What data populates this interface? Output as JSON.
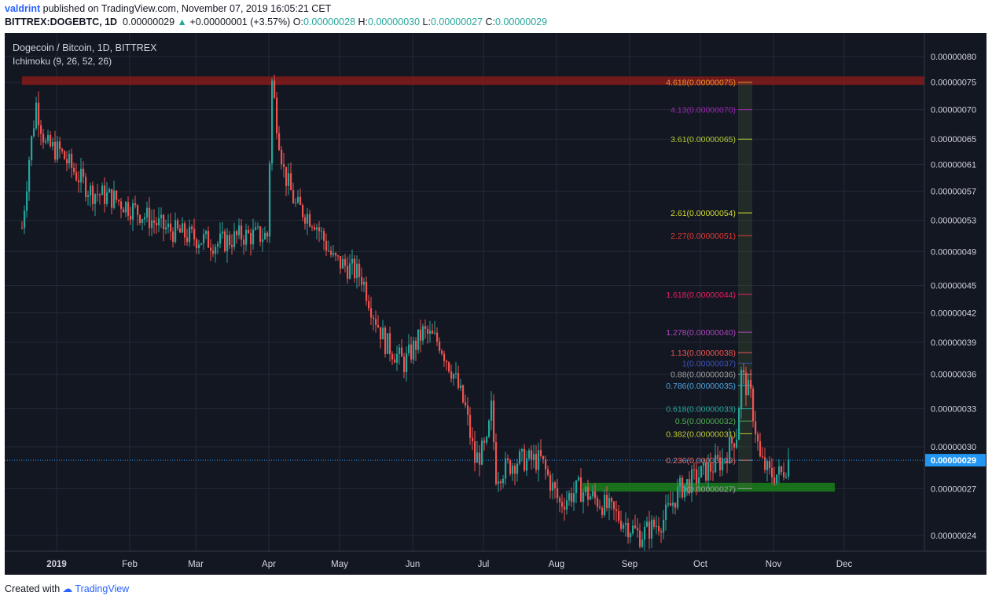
{
  "header": {
    "author": "valdrint",
    "published_text": "published on TradingView.com, November 07, 2019 16:05:21 CET",
    "symbol": "BITTREX:DOGEBTC, 1D",
    "last": "0.00000029",
    "arrow": "▲",
    "change": "+0.00000001 (+3.57%)",
    "o_label": "O:",
    "o_value": "0.00000028",
    "h_label": "H:",
    "h_value": "0.00000030",
    "l_label": "L:",
    "l_value": "0.00000027",
    "c_label": "C:",
    "c_value": "0.00000029"
  },
  "chart_data": {
    "type": "candlestick",
    "title": "Dogecoin / Bitcoin, 1D, BITTREX",
    "indicator": "Ichimoku (9, 26, 52, 26)",
    "price_axis_labels": [
      "0.00000080",
      "0.00000075",
      "0.00000070",
      "0.00000065",
      "0.00000061",
      "0.00000057",
      "0.00000053",
      "0.00000049",
      "0.00000045",
      "0.00000042",
      "0.00000039",
      "0.00000036",
      "0.00000033",
      "0.00000030",
      "0.00000027",
      "0.00000024"
    ],
    "time_axis_labels": [
      "2019",
      "Feb",
      "Mar",
      "Apr",
      "May",
      "Jun",
      "Jul",
      "Aug",
      "Sep",
      "Oct",
      "Nov",
      "Dec"
    ],
    "current_price_label": "0.00000029",
    "price_path": [
      [
        "2018-12-17",
        5.2e-07
      ],
      [
        "2018-12-20",
        6.2e-07
      ],
      [
        "2018-12-23",
        7.1e-07
      ],
      [
        "2018-12-27",
        6.4e-07
      ],
      [
        "2019-01-02",
        6.3e-07
      ],
      [
        "2019-01-08",
        6e-07
      ],
      [
        "2019-01-15",
        5.7e-07
      ],
      [
        "2019-01-25",
        5.6e-07
      ],
      [
        "2019-02-05",
        5.4e-07
      ],
      [
        "2019-02-15",
        5.2e-07
      ],
      [
        "2019-02-25",
        5.1e-07
      ],
      [
        "2019-03-10",
        5e-07
      ],
      [
        "2019-03-20",
        5.1e-07
      ],
      [
        "2019-03-31",
        5.1e-07
      ],
      [
        "2019-04-02",
        7.5e-07
      ],
      [
        "2019-04-04",
        6.8e-07
      ],
      [
        "2019-04-07",
        6e-07
      ],
      [
        "2019-04-12",
        5.5e-07
      ],
      [
        "2019-04-20",
        5.3e-07
      ],
      [
        "2019-04-28",
        4.8e-07
      ],
      [
        "2019-05-05",
        4.7e-07
      ],
      [
        "2019-05-10",
        4.6e-07
      ],
      [
        "2019-05-15",
        4.2e-07
      ],
      [
        "2019-05-20",
        3.9e-07
      ],
      [
        "2019-05-28",
        3.7e-07
      ],
      [
        "2019-06-05",
        4e-07
      ],
      [
        "2019-06-12",
        3.9e-07
      ],
      [
        "2019-06-18",
        3.6e-07
      ],
      [
        "2019-06-23",
        3.3e-07
      ],
      [
        "2019-06-27",
        2.9e-07
      ],
      [
        "2019-07-02",
        3e-07
      ],
      [
        "2019-07-04",
        3.3e-07
      ],
      [
        "2019-07-06",
        2.8e-07
      ],
      [
        "2019-07-15",
        2.9e-07
      ],
      [
        "2019-07-25",
        2.9e-07
      ],
      [
        "2019-08-02",
        2.6e-07
      ],
      [
        "2019-08-10",
        2.7e-07
      ],
      [
        "2019-08-20",
        2.6e-07
      ],
      [
        "2019-08-28",
        2.5e-07
      ],
      [
        "2019-09-05",
        2.4e-07
      ],
      [
        "2019-09-15",
        2.5e-07
      ],
      [
        "2019-09-22",
        2.7e-07
      ],
      [
        "2019-10-01",
        2.8e-07
      ],
      [
        "2019-10-10",
        2.9e-07
      ],
      [
        "2019-10-16",
        3.1e-07
      ],
      [
        "2019-10-18",
        3.6e-07
      ],
      [
        "2019-10-22",
        3.4e-07
      ],
      [
        "2019-10-26",
        2.9e-07
      ],
      [
        "2019-10-30",
        2.8e-07
      ],
      [
        "2019-11-04",
        2.8e-07
      ],
      [
        "2019-11-07",
        2.9e-07
      ]
    ],
    "fib_levels": [
      {
        "label": "4.618(0.00000075)",
        "price": 7.5e-07,
        "color": "#e8912b"
      },
      {
        "label": "4.13(0.00000070)",
        "price": 7e-07,
        "color": "#9c27b0"
      },
      {
        "label": "3.61(0.00000065)",
        "price": 6.5e-07,
        "color": "#b2cc34"
      },
      {
        "label": "2.61(0.00000054)",
        "price": 5.4e-07,
        "color": "#d4dd2b"
      },
      {
        "label": "2.27(0.00000051)",
        "price": 5.1e-07,
        "color": "#e53935"
      },
      {
        "label": "1.618(0.00000044)",
        "price": 4.4e-07,
        "color": "#e91e63"
      },
      {
        "label": "1.278(0.00000040)",
        "price": 4e-07,
        "color": "#ab47bc"
      },
      {
        "label": "1.13(0.00000038)",
        "price": 3.8e-07,
        "color": "#ef5350"
      },
      {
        "label": "1(0.00000037)",
        "price": 3.7e-07,
        "color": "#3f51b5"
      },
      {
        "label": "0.88(0.00000036)",
        "price": 3.6e-07,
        "color": "#9e9e9e"
      },
      {
        "label": "0.786(0.00000035)",
        "price": 3.5e-07,
        "color": "#4aa5e0"
      },
      {
        "label": "0.618(0.00000033)",
        "price": 3.3e-07,
        "color": "#26a69a"
      },
      {
        "label": "0.5(0.00000032)",
        "price": 3.2e-07,
        "color": "#4caf50"
      },
      {
        "label": "0.382(0.00000031)",
        "price": 3.1e-07,
        "color": "#c0ca33"
      },
      {
        "label": "0.236(0.00000029)",
        "price": 2.9e-07,
        "color": "#e57373"
      },
      {
        "label": "0(0.00000027)",
        "price": 2.7e-07,
        "color": "#9e9e9e"
      }
    ],
    "resistance_zone": [
      7.45e-07,
      7.61e-07
    ],
    "support_zone": [
      2.68e-07,
      2.74e-07
    ],
    "colors": {
      "background": "#131722",
      "up": "#26a69a",
      "down": "#ef5350",
      "resistance": "#8b1a1a",
      "support": "#1b8f1b",
      "price_tag": "#2196f3"
    }
  },
  "footer": {
    "created_with": "Created with",
    "brand": "TradingView"
  }
}
